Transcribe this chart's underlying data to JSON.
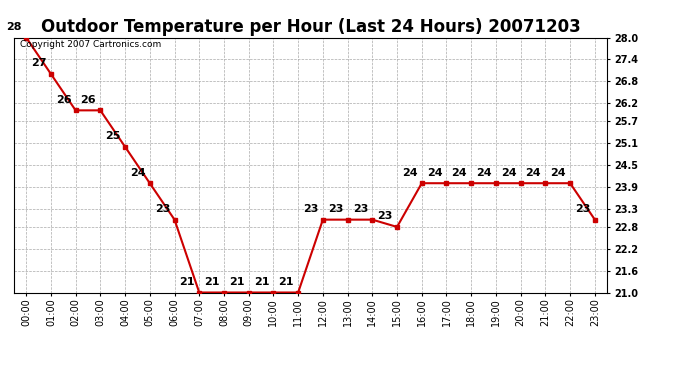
{
  "title": "Outdoor Temperature per Hour (Last 24 Hours) 20071203",
  "copyright_text": "Copyright 2007 Cartronics.com",
  "hours": [
    0,
    1,
    2,
    3,
    4,
    5,
    6,
    7,
    8,
    9,
    10,
    11,
    12,
    13,
    14,
    15,
    16,
    17,
    18,
    19,
    20,
    21,
    22,
    23
  ],
  "x_labels": [
    "00:00",
    "01:00",
    "02:00",
    "03:00",
    "04:00",
    "05:00",
    "06:00",
    "07:00",
    "08:00",
    "09:00",
    "10:00",
    "11:00",
    "12:00",
    "13:00",
    "14:00",
    "15:00",
    "16:00",
    "17:00",
    "18:00",
    "19:00",
    "20:00",
    "21:00",
    "22:00",
    "23:00"
  ],
  "temperatures": [
    28.0,
    27.0,
    26.0,
    26.0,
    25.0,
    24.0,
    23.0,
    21.0,
    21.0,
    21.0,
    21.0,
    21.0,
    23.0,
    23.0,
    23.0,
    22.8,
    24.0,
    24.0,
    24.0,
    24.0,
    24.0,
    24.0,
    24.0,
    23.0
  ],
  "data_labels": [
    "28",
    "27",
    "26",
    "26",
    "25",
    "24",
    "23",
    "21",
    "21",
    "21",
    "21",
    "21",
    "23",
    "23",
    "23",
    "23",
    "24",
    "24",
    "24",
    "24",
    "24",
    "24",
    "24",
    "23"
  ],
  "line_color": "#cc0000",
  "marker_color": "#cc0000",
  "background_color": "#ffffff",
  "grid_color": "#aaaaaa",
  "ylim_min": 21.0,
  "ylim_max": 28.0,
  "yticks": [
    21.0,
    21.6,
    22.2,
    22.8,
    23.3,
    23.9,
    24.5,
    25.1,
    25.7,
    26.2,
    26.8,
    27.4,
    28.0
  ],
  "title_fontsize": 12,
  "tick_fontsize": 7,
  "data_label_fontsize": 8,
  "copyright_fontsize": 6.5
}
